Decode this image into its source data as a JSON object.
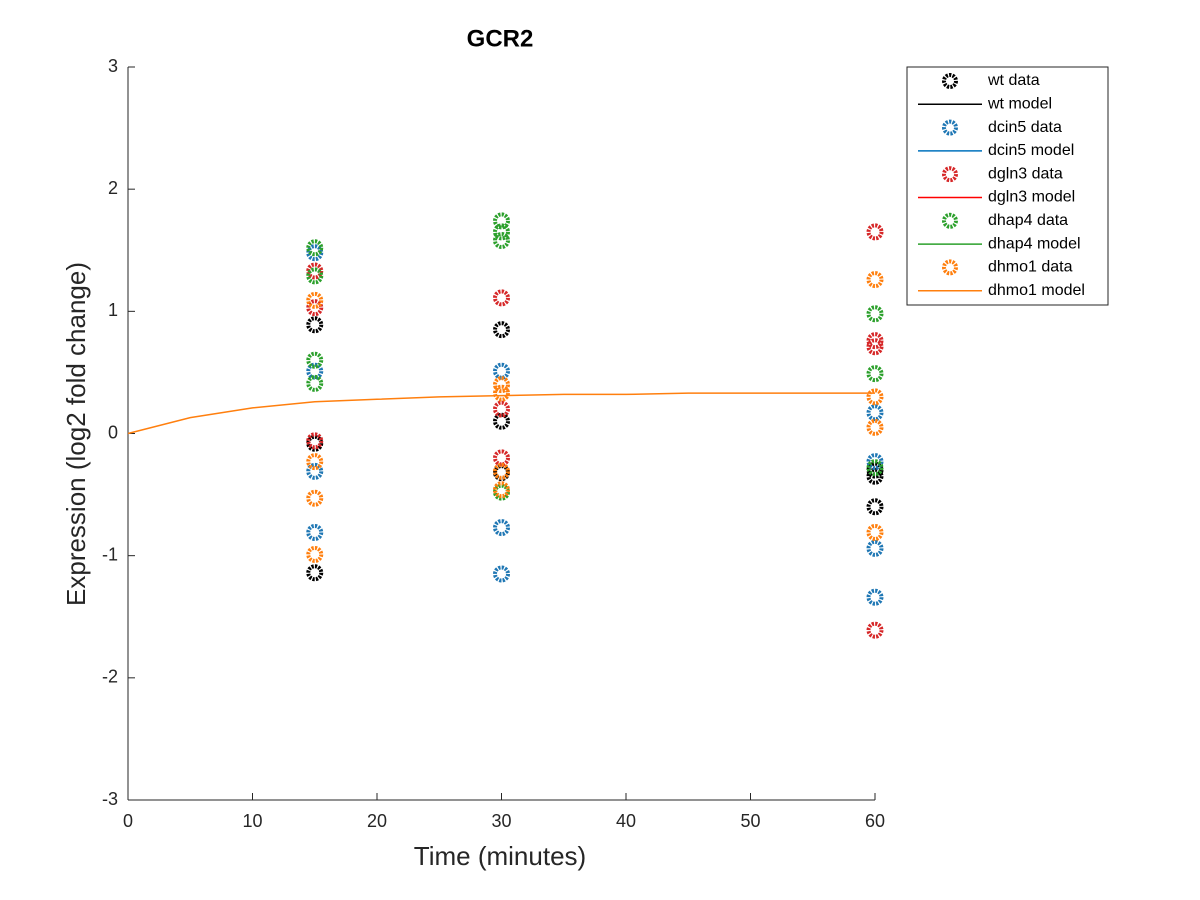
{
  "chart_data": {
    "type": "scatter-line",
    "title": "GCR2",
    "x_label": "Time (minutes)",
    "y_label": "Expression (log2 fold change)",
    "xlim": [
      0,
      60
    ],
    "xticks": [
      0,
      10,
      20,
      30,
      40,
      50,
      60
    ],
    "ylim": [
      -3,
      3
    ],
    "yticks": [
      -3,
      -2,
      -1,
      0,
      1,
      2,
      3
    ],
    "legend": "outside-top-right",
    "series": [
      {
        "name": "wt data",
        "mode": "markers",
        "color": "#000000",
        "x": [
          15,
          15,
          15,
          30,
          30,
          30,
          60,
          60,
          60
        ],
        "values": [
          0.89,
          -0.08,
          -1.14,
          0.85,
          0.1,
          -0.32,
          -0.3,
          -0.35,
          -0.6
        ]
      },
      {
        "name": "wt model",
        "mode": "line",
        "color": "#000000",
        "x": [
          0,
          5,
          10,
          15,
          20,
          25,
          30,
          35,
          40,
          45,
          50,
          55,
          60
        ],
        "values": [
          null,
          null,
          null,
          null,
          null,
          null,
          null,
          null,
          null,
          null,
          null,
          null,
          null
        ]
      },
      {
        "name": "dcin5 data",
        "mode": "markers",
        "color": "#1f77b4",
        "x": [
          15,
          15,
          15,
          15,
          30,
          30,
          30,
          60,
          60,
          60,
          60
        ],
        "values": [
          1.48,
          0.51,
          -0.31,
          -0.81,
          0.51,
          -0.77,
          -1.15,
          0.17,
          -0.23,
          -0.94,
          -1.34
        ]
      },
      {
        "name": "dcin5 model",
        "mode": "line",
        "color": "#0072bd",
        "x": [
          0,
          5,
          10,
          15,
          20,
          25,
          30,
          35,
          40,
          45,
          50,
          55,
          60
        ],
        "values": [
          null,
          null,
          null,
          null,
          null,
          null,
          null,
          null,
          null,
          null,
          null,
          null,
          null
        ]
      },
      {
        "name": "dgln3 data",
        "mode": "markers",
        "color": "#d62728",
        "x": [
          15,
          15,
          15,
          30,
          30,
          30,
          60,
          60,
          60,
          60
        ],
        "values": [
          1.33,
          1.03,
          -0.06,
          1.11,
          0.2,
          -0.2,
          1.65,
          0.76,
          0.71,
          -1.61
        ]
      },
      {
        "name": "dgln3 model",
        "mode": "line",
        "color": "#ff0000",
        "x": [
          0,
          5,
          10,
          15,
          20,
          25,
          30,
          35,
          40,
          45,
          50,
          55,
          60
        ],
        "values": [
          null,
          null,
          null,
          null,
          null,
          null,
          null,
          null,
          null,
          null,
          null,
          null,
          null
        ]
      },
      {
        "name": "dhap4 data",
        "mode": "markers",
        "color": "#2ca02c",
        "x": [
          15,
          15,
          15,
          15,
          30,
          30,
          30,
          30,
          60,
          60,
          60
        ],
        "values": [
          1.52,
          1.29,
          0.6,
          0.41,
          1.74,
          1.65,
          1.58,
          -0.48,
          0.98,
          0.49,
          -0.28
        ]
      },
      {
        "name": "dhap4 model",
        "mode": "line",
        "color": "#2ca02c",
        "x": [
          0,
          5,
          10,
          15,
          20,
          25,
          30,
          35,
          40,
          45,
          50,
          55,
          60
        ],
        "values": [
          null,
          null,
          null,
          null,
          null,
          null,
          null,
          null,
          null,
          null,
          null,
          null,
          null
        ]
      },
      {
        "name": "dhmo1 data",
        "mode": "markers",
        "color": "#ff7f0e",
        "x": [
          15,
          15,
          15,
          15,
          30,
          30,
          30,
          30,
          60,
          60,
          60,
          60
        ],
        "values": [
          1.09,
          -0.23,
          -0.53,
          -0.99,
          0.4,
          0.33,
          -0.31,
          -0.46,
          1.26,
          0.3,
          0.05,
          -0.81
        ]
      },
      {
        "name": "dhmo1 model",
        "mode": "line",
        "color": "#ff7f0e",
        "x": [
          0,
          5,
          10,
          15,
          20,
          25,
          30,
          35,
          40,
          45,
          50,
          55,
          60
        ],
        "values": [
          0,
          0.13,
          0.21,
          0.26,
          0.28,
          0.3,
          0.31,
          0.32,
          0.32,
          0.33,
          0.33,
          0.33,
          0.33
        ]
      }
    ]
  }
}
